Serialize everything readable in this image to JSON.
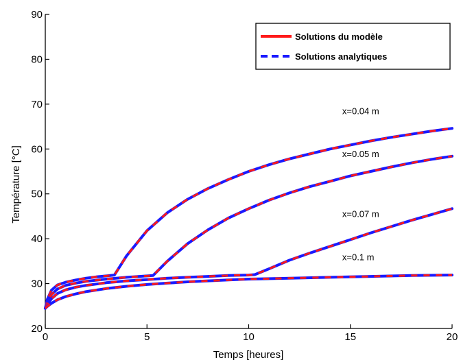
{
  "chart_data": {
    "type": "line",
    "xlabel": "Temps [heures]",
    "ylabel": "Température [°C]",
    "xlim": [
      0,
      20
    ],
    "ylim": [
      20,
      90
    ],
    "xticks": [
      0,
      5,
      10,
      15,
      20
    ],
    "yticks": [
      20,
      30,
      40,
      50,
      60,
      70,
      80,
      90
    ],
    "grid": false,
    "legend": {
      "placement": "top-right",
      "entries": [
        {
          "label": "Solutions du modèle",
          "color": "#ff1a1a",
          "style": "solid"
        },
        {
          "label": "Solutions analytiques",
          "color": "#1a1aff",
          "style": "dashed"
        }
      ]
    },
    "series": [
      {
        "label": "x=0.04 m",
        "x": [
          0,
          0.1,
          0.3,
          0.6,
          1,
          1.5,
          2,
          2.5,
          3,
          3.4,
          4,
          5,
          6,
          7,
          8,
          9,
          10,
          11,
          12,
          13,
          14,
          15,
          16,
          17,
          18,
          19,
          20
        ],
        "y": [
          24.5,
          26.5,
          28.5,
          29.7,
          30.3,
          30.8,
          31.2,
          31.5,
          31.7,
          31.9,
          36.2,
          41.8,
          45.8,
          48.8,
          51.2,
          53.2,
          55.0,
          56.5,
          57.8,
          58.9,
          60.0,
          60.9,
          61.8,
          62.6,
          63.3,
          64.0,
          64.6
        ]
      },
      {
        "label": "x=0.05 m",
        "x": [
          0,
          0.1,
          0.3,
          0.6,
          1,
          1.5,
          2,
          3,
          4,
          5,
          5.3,
          6,
          7,
          8,
          9,
          10,
          11,
          12,
          13,
          14,
          15,
          16,
          17,
          18,
          19,
          20
        ],
        "y": [
          24.5,
          25.8,
          27.5,
          28.8,
          29.6,
          30.1,
          30.5,
          31.0,
          31.4,
          31.7,
          31.8,
          35.0,
          38.9,
          42.0,
          44.6,
          46.7,
          48.6,
          50.2,
          51.6,
          52.8,
          54.0,
          55.0,
          56.0,
          56.9,
          57.7,
          58.4
        ]
      },
      {
        "label": "x=0.07 m",
        "x": [
          0,
          0.1,
          0.3,
          0.6,
          1,
          1.5,
          2,
          3,
          4,
          5,
          6,
          7,
          8,
          9,
          10,
          10.3,
          11,
          12,
          13,
          14,
          15,
          16,
          17,
          18,
          19,
          20
        ],
        "y": [
          24.5,
          25.3,
          26.6,
          27.8,
          28.6,
          29.2,
          29.6,
          30.2,
          30.6,
          30.9,
          31.2,
          31.4,
          31.6,
          31.8,
          31.9,
          32.0,
          33.3,
          35.2,
          36.8,
          38.3,
          39.8,
          41.3,
          42.7,
          44.1,
          45.4,
          46.7
        ]
      },
      {
        "label": "x=0.1 m",
        "x": [
          0,
          0.1,
          0.3,
          0.6,
          1,
          1.5,
          2,
          3,
          4,
          5,
          6,
          7,
          8,
          9,
          10,
          12,
          14,
          16,
          18,
          20
        ],
        "y": [
          24.5,
          24.9,
          25.6,
          26.4,
          27.1,
          27.7,
          28.2,
          28.9,
          29.4,
          29.8,
          30.1,
          30.4,
          30.6,
          30.8,
          31.0,
          31.2,
          31.4,
          31.6,
          31.8,
          31.9
        ]
      }
    ],
    "annotations": [
      {
        "text": "x=0.04 m",
        "x": 14.6,
        "y": 67.8
      },
      {
        "text": "x=0.05 m",
        "x": 14.6,
        "y": 58.2
      },
      {
        "text": "x=0.07 m",
        "x": 14.6,
        "y": 44.8
      },
      {
        "text": "x=0.1 m",
        "x": 14.6,
        "y": 35.2
      }
    ]
  }
}
